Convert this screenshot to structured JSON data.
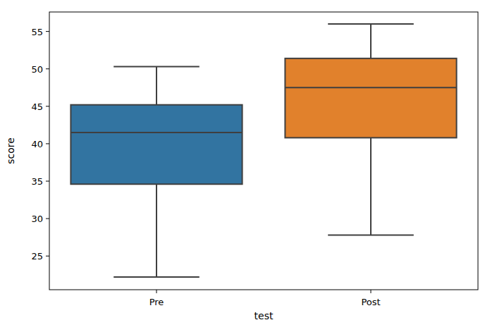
{
  "chart_data": {
    "type": "box",
    "x_label": "test",
    "y_label": "score",
    "categories": [
      "Pre",
      "Post"
    ],
    "boxes": [
      {
        "low": 22.2,
        "q1": 34.6,
        "median": 41.5,
        "q3": 45.2,
        "high": 50.3
      },
      {
        "low": 27.8,
        "q1": 40.8,
        "median": 47.5,
        "q3": 51.4,
        "high": 56.0
      }
    ],
    "colors": [
      "#3274a1",
      "#e1812c"
    ],
    "ylim": [
      20.5,
      57.6
    ],
    "yticks": [
      25,
      30,
      35,
      40,
      45,
      50,
      55
    ],
    "grid": false
  }
}
